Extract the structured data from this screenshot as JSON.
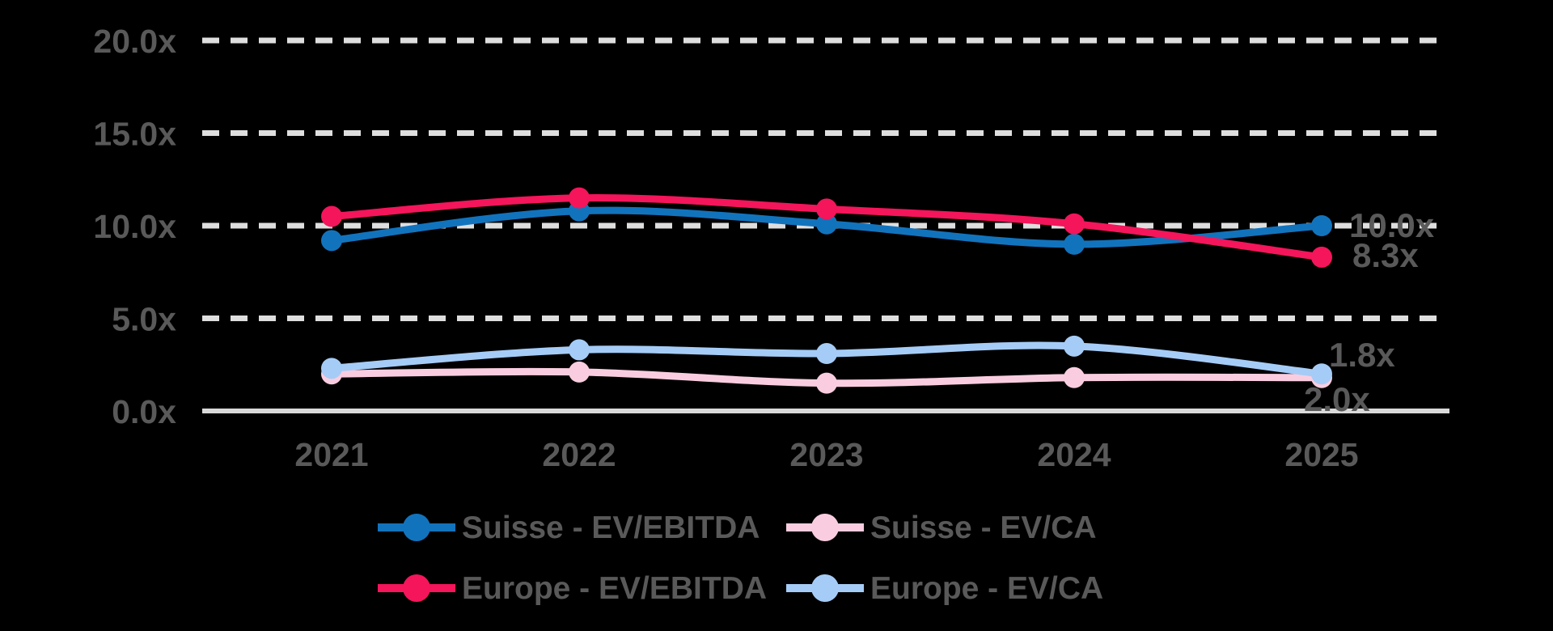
{
  "colors": {
    "background": "#000000",
    "text": "#595959",
    "grid": "#DEDEDE",
    "axis": "#D9D9D9"
  },
  "chart_data": {
    "type": "line",
    "x_categories": [
      "2021",
      "2022",
      "2023",
      "2024",
      "2025"
    ],
    "yticks": [
      {
        "label": "20.0x",
        "value": 20
      },
      {
        "label": "15.0x",
        "value": 15
      },
      {
        "label": "10.0x",
        "value": 10
      },
      {
        "label": "5.0x",
        "value": 5
      },
      {
        "label": "0.0x",
        "value": 0
      }
    ],
    "ylim": [
      0,
      20
    ],
    "grid": "dashed-horizontal",
    "legend": {
      "position": "bottom",
      "rows": [
        [
          "suisse-ev-ebitda",
          "suisse-ev-ca"
        ],
        [
          "europe-ev-ebitda",
          "europe-ev-ca"
        ]
      ]
    },
    "series": [
      {
        "key": "suisse-ev-ebitda",
        "name": "Suisse - EV/EBITDA",
        "color": "#1273BD",
        "values": [
          9.2,
          10.8,
          10.1,
          9.0,
          10.0
        ],
        "end_label": "10.0x"
      },
      {
        "key": "suisse-ev-ca",
        "name": "Suisse - EV/CA",
        "color": "#F9CDDF",
        "values": [
          2.0,
          2.1,
          1.5,
          1.8,
          1.8
        ],
        "end_label": "1.8x"
      },
      {
        "key": "europe-ev-ebitda",
        "name": "Europe - EV/EBITDA",
        "color": "#F4155B",
        "values": [
          10.5,
          11.5,
          10.9,
          10.1,
          8.3
        ],
        "end_label": "8.3x"
      },
      {
        "key": "europe-ev-ca",
        "name": "Europe - EV/CA",
        "color": "#A5CCF6",
        "values": [
          2.3,
          3.3,
          3.1,
          3.5,
          2.0
        ],
        "end_label": "2.0x"
      }
    ]
  }
}
